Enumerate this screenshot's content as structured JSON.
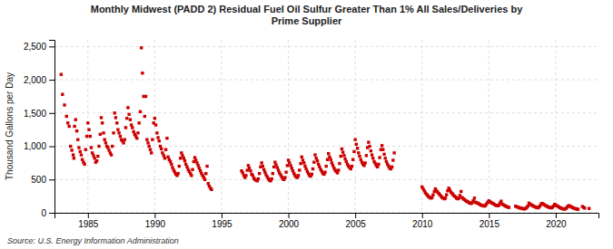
{
  "chart_data": {
    "type": "scatter",
    "title": "Monthly Midwest (PADD 2) Residual Fuel Oil Sulfur Greater Than 1% All Sales/Deliveries by\nPrime Supplier",
    "ylabel": "Thousand Gallons per Day",
    "source": "Source: U.S. Energy Information Administration",
    "color": "#CC0000",
    "marker": "square",
    "grid": true,
    "xlim": [
      1982.5,
      2023.2
    ],
    "ylim": [
      0,
      2600
    ],
    "xticks": [
      1985,
      1990,
      1995,
      2000,
      2005,
      2010,
      2015,
      2020
    ],
    "yticks": [
      0,
      500,
      {
        "value": 1000,
        "label": "1,000"
      },
      {
        "value": 1500,
        "label": "1,500"
      },
      {
        "value": 2000,
        "label": "2,000"
      },
      {
        "value": 2500,
        "label": "2,500"
      }
    ],
    "x": [
      1983.0,
      1983.1,
      1983.25,
      1983.4,
      1983.5,
      1983.6,
      1983.7,
      1983.8,
      1983.9,
      1983.95,
      1984.0,
      1984.08,
      1984.17,
      1984.25,
      1984.33,
      1984.42,
      1984.5,
      1984.58,
      1984.67,
      1984.75,
      1984.83,
      1984.92,
      1985.0,
      1985.08,
      1985.17,
      1985.25,
      1985.33,
      1985.42,
      1985.5,
      1985.58,
      1985.67,
      1985.75,
      1985.83,
      1985.92,
      1986.0,
      1986.08,
      1986.17,
      1986.25,
      1986.33,
      1986.42,
      1986.5,
      1986.58,
      1986.67,
      1986.75,
      1986.83,
      1986.92,
      1987.0,
      1987.08,
      1987.17,
      1987.25,
      1987.33,
      1987.42,
      1987.5,
      1987.58,
      1987.67,
      1987.75,
      1987.83,
      1987.92,
      1988.0,
      1988.08,
      1988.17,
      1988.25,
      1988.33,
      1988.42,
      1988.5,
      1988.58,
      1988.67,
      1988.75,
      1988.83,
      1988.92,
      1989.0,
      1989.08,
      1989.17,
      1989.25,
      1989.33,
      1989.42,
      1989.5,
      1989.58,
      1989.67,
      1989.75,
      1989.83,
      1989.92,
      1990.0,
      1990.08,
      1990.17,
      1990.25,
      1990.33,
      1990.42,
      1990.5,
      1990.58,
      1990.67,
      1990.75,
      1990.83,
      1990.92,
      1991.0,
      1991.08,
      1991.17,
      1991.25,
      1991.33,
      1991.42,
      1991.5,
      1991.58,
      1991.67,
      1991.75,
      1991.83,
      1991.92,
      1992.0,
      1992.08,
      1992.17,
      1992.25,
      1992.33,
      1992.42,
      1992.5,
      1992.58,
      1992.67,
      1992.75,
      1992.83,
      1992.92,
      1993.0,
      1993.08,
      1993.17,
      1993.25,
      1993.33,
      1993.42,
      1993.5,
      1993.58,
      1993.67,
      1993.75,
      1993.83,
      1993.92,
      1994.0,
      1994.08,
      1994.17,
      1994.25,
      1996.5,
      1996.58,
      1996.67,
      1996.75,
      1996.83,
      1996.92,
      1997.0,
      1997.08,
      1997.17,
      1997.25,
      1997.33,
      1997.42,
      1997.5,
      1997.58,
      1997.67,
      1997.75,
      1997.83,
      1997.92,
      1998.0,
      1998.08,
      1998.17,
      1998.25,
      1998.33,
      1998.42,
      1998.5,
      1998.58,
      1998.67,
      1998.75,
      1998.83,
      1998.92,
      1999.0,
      1999.08,
      1999.17,
      1999.25,
      1999.33,
      1999.42,
      1999.5,
      1999.58,
      1999.67,
      1999.75,
      1999.83,
      1999.92,
      2000.0,
      2000.08,
      2000.17,
      2000.25,
      2000.33,
      2000.42,
      2000.5,
      2000.58,
      2000.67,
      2000.75,
      2000.83,
      2000.92,
      2001.0,
      2001.08,
      2001.17,
      2001.25,
      2001.33,
      2001.42,
      2001.5,
      2001.58,
      2001.67,
      2001.75,
      2001.83,
      2001.92,
      2002.0,
      2002.08,
      2002.17,
      2002.25,
      2002.33,
      2002.42,
      2002.5,
      2002.58,
      2002.67,
      2002.75,
      2002.83,
      2002.92,
      2003.0,
      2003.08,
      2003.17,
      2003.25,
      2003.33,
      2003.42,
      2003.5,
      2003.58,
      2003.67,
      2003.75,
      2003.83,
      2003.92,
      2004.0,
      2004.08,
      2004.17,
      2004.25,
      2004.33,
      2004.42,
      2004.5,
      2004.58,
      2004.67,
      2004.75,
      2004.83,
      2004.92,
      2005.0,
      2005.08,
      2005.17,
      2005.25,
      2005.33,
      2005.42,
      2005.5,
      2005.58,
      2005.67,
      2005.75,
      2005.83,
      2005.92,
      2006.0,
      2006.08,
      2006.17,
      2006.25,
      2006.33,
      2006.42,
      2006.5,
      2006.58,
      2006.67,
      2006.75,
      2006.83,
      2006.92,
      2007.0,
      2007.08,
      2007.17,
      2007.25,
      2007.33,
      2007.42,
      2007.5,
      2007.58,
      2007.67,
      2007.75,
      2007.83,
      2007.92,
      2010.0,
      2010.08,
      2010.17,
      2010.25,
      2010.33,
      2010.42,
      2010.5,
      2010.58,
      2010.67,
      2010.75,
      2010.83,
      2010.92,
      2011.0,
      2011.08,
      2011.17,
      2011.25,
      2011.33,
      2011.42,
      2011.5,
      2011.58,
      2011.67,
      2011.75,
      2011.83,
      2011.92,
      2012.0,
      2012.08,
      2012.17,
      2012.25,
      2012.33,
      2012.42,
      2012.5,
      2012.58,
      2012.67,
      2012.75,
      2012.83,
      2012.92,
      2013.0,
      2013.08,
      2013.17,
      2013.25,
      2013.33,
      2013.42,
      2013.5,
      2013.58,
      2013.67,
      2013.75,
      2013.83,
      2013.92,
      2014.0,
      2014.08,
      2014.17,
      2014.25,
      2014.33,
      2014.42,
      2014.5,
      2014.58,
      2014.67,
      2014.75,
      2014.83,
      2014.92,
      2015.0,
      2015.08,
      2015.17,
      2015.25,
      2015.33,
      2015.42,
      2015.5,
      2015.58,
      2015.67,
      2015.75,
      2015.83,
      2015.92,
      2016.0,
      2016.08,
      2016.17,
      2016.25,
      2016.33,
      2016.42,
      2016.5,
      2017.0,
      2017.08,
      2017.17,
      2017.25,
      2017.33,
      2017.42,
      2017.5,
      2017.58,
      2017.67,
      2017.75,
      2017.83,
      2017.92,
      2018.0,
      2018.08,
      2018.17,
      2018.25,
      2018.33,
      2018.42,
      2018.5,
      2018.58,
      2018.67,
      2018.75,
      2018.83,
      2018.92,
      2019.0,
      2019.08,
      2019.17,
      2019.25,
      2019.33,
      2019.42,
      2019.5,
      2019.58,
      2019.67,
      2019.75,
      2019.83,
      2019.92,
      2020.0,
      2020.08,
      2020.17,
      2020.25,
      2020.33,
      2020.42,
      2020.5,
      2020.58,
      2020.67,
      2020.75,
      2020.83,
      2020.92,
      2021.0,
      2021.08,
      2021.17,
      2021.25,
      2021.33,
      2021.42,
      2021.5,
      2021.58,
      2021.67,
      2022.0,
      2022.08,
      2022.17,
      2022.5
    ],
    "values": [
      2080,
      1780,
      1620,
      1450,
      1350,
      1300,
      1000,
      940,
      870,
      820,
      1300,
      1400,
      1230,
      1100,
      980,
      920,
      870,
      800,
      760,
      730,
      950,
      1150,
      1350,
      1250,
      1150,
      980,
      900,
      860,
      820,
      760,
      780,
      850,
      1000,
      1180,
      1430,
      1350,
      1200,
      1100,
      1050,
      1000,
      980,
      940,
      900,
      870,
      1000,
      1200,
      1500,
      1430,
      1350,
      1250,
      1200,
      1150,
      1100,
      1080,
      1050,
      1100,
      1280,
      1420,
      1580,
      1480,
      1400,
      1320,
      1280,
      1220,
      1180,
      1150,
      1120,
      1200,
      1350,
      1520,
      2480,
      2100,
      1750,
      1450,
      1750,
      1100,
      1050,
      1000,
      950,
      900,
      1100,
      1350,
      1420,
      1320,
      1200,
      1130,
      1080,
      1000,
      960,
      900,
      860,
      820,
      950,
      1120,
      840,
      800,
      770,
      730,
      680,
      640,
      610,
      580,
      560,
      590,
      700,
      820,
      900,
      860,
      820,
      780,
      730,
      690,
      650,
      620,
      590,
      560,
      650,
      770,
      830,
      790,
      750,
      710,
      670,
      630,
      590,
      560,
      530,
      500,
      590,
      700,
      440,
      400,
      370,
      350,
      630,
      600,
      560,
      530,
      560,
      640,
      710,
      670,
      630,
      580,
      560,
      520,
      500,
      490,
      480,
      510,
      590,
      690,
      750,
      700,
      650,
      610,
      570,
      540,
      510,
      490,
      480,
      510,
      590,
      690,
      760,
      720,
      680,
      640,
      600,
      570,
      540,
      510,
      500,
      530,
      610,
      710,
      790,
      750,
      710,
      670,
      630,
      590,
      560,
      540,
      530,
      560,
      640,
      740,
      840,
      790,
      750,
      700,
      660,
      620,
      590,
      560,
      550,
      580,
      660,
      760,
      870,
      820,
      780,
      730,
      690,
      650,
      620,
      590,
      580,
      610,
      700,
      800,
      890,
      840,
      800,
      750,
      710,
      670,
      640,
      620,
      600,
      640,
      740,
      850,
      960,
      910,
      860,
      810,
      770,
      730,
      700,
      680,
      660,
      700,
      800,
      920,
      1100,
      1030,
      970,
      900,
      850,
      800,
      760,
      730,
      710,
      750,
      860,
      980,
      1060,
      1000,
      930,
      870,
      820,
      770,
      740,
      710,
      690,
      730,
      830,
      950,
      1010,
      950,
      880,
      820,
      770,
      730,
      700,
      670,
      660,
      690,
      790,
      900,
      390,
      360,
      330,
      300,
      280,
      260,
      240,
      230,
      220,
      230,
      270,
      320,
      360,
      330,
      310,
      290,
      270,
      250,
      230,
      220,
      210,
      220,
      270,
      330,
      370,
      340,
      310,
      290,
      270,
      250,
      240,
      220,
      210,
      220,
      260,
      320,
      230,
      210,
      200,
      185,
      175,
      165,
      155,
      145,
      140,
      150,
      180,
      220,
      160,
      150,
      145,
      135,
      125,
      115,
      110,
      105,
      100,
      110,
      135,
      160,
      180,
      165,
      155,
      145,
      135,
      125,
      115,
      110,
      105,
      115,
      145,
      175,
      130,
      120,
      110,
      100,
      95,
      85,
      80,
      100,
      90,
      85,
      78,
      72,
      68,
      65,
      60,
      58,
      65,
      80,
      100,
      145,
      130,
      120,
      110,
      100,
      92,
      85,
      80,
      75,
      85,
      105,
      135,
      140,
      128,
      118,
      108,
      98,
      90,
      83,
      78,
      73,
      82,
      100,
      128,
      115,
      105,
      96,
      86,
      75,
      68,
      62,
      58,
      55,
      62,
      78,
      100,
      108,
      98,
      88,
      80,
      72,
      65,
      60,
      56,
      53,
      95,
      82,
      70,
      65
    ]
  }
}
